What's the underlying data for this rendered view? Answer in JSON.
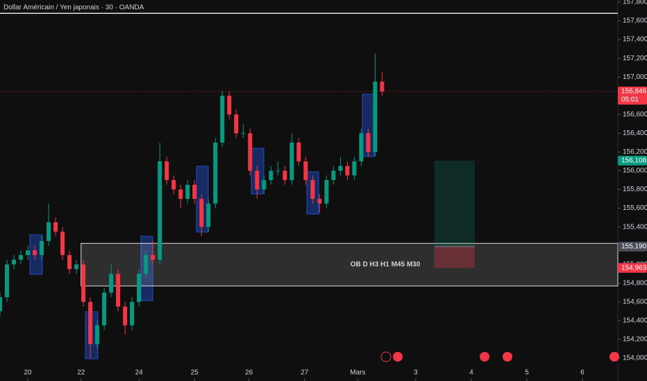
{
  "chart_data": {
    "type": "candlestick",
    "title": "Dollar Américain / Yen japonais · 30 · OANDA",
    "up_color": "#089981",
    "down_color": "#f23645",
    "x": [
      0,
      6,
      12,
      18,
      24,
      30,
      36,
      42,
      48,
      54,
      60,
      66,
      72,
      78,
      84,
      90,
      96,
      102,
      108,
      114,
      120,
      126,
      132,
      138,
      144,
      150,
      156,
      162,
      168,
      174,
      180,
      186,
      192,
      198,
      204,
      210,
      216,
      222,
      228,
      234,
      240,
      246,
      252,
      258,
      264,
      270,
      276,
      282,
      288,
      294,
      300,
      306,
      312,
      318,
      324,
      330
    ],
    "open": [
      154500,
      154650,
      155000,
      155050,
      155100,
      155150,
      155100,
      155250,
      155450,
      155350,
      155100,
      154950,
      155000,
      154600,
      154150,
      154350,
      154700,
      154900,
      154550,
      154350,
      154600,
      154900,
      155100,
      155050,
      156100,
      155900,
      155800,
      155700,
      155850,
      155700,
      155400,
      155650,
      156300,
      156800,
      156600,
      156400,
      156400,
      156000,
      155800,
      155900,
      156000,
      156000,
      155900,
      156300,
      156100,
      155900,
      155700,
      155650,
      155900,
      156000,
      156050,
      155950,
      156100,
      156400,
      156200,
      156950
    ],
    "high": [
      154700,
      155050,
      155100,
      155150,
      155200,
      155200,
      155300,
      155650,
      155500,
      155400,
      155150,
      155050,
      155050,
      154650,
      154400,
      154750,
      155000,
      154950,
      154600,
      154650,
      154950,
      155150,
      155250,
      156300,
      156150,
      155950,
      155850,
      155900,
      155900,
      155750,
      155700,
      156350,
      156850,
      156850,
      156650,
      156500,
      156450,
      156050,
      155950,
      156050,
      156100,
      156050,
      156400,
      156350,
      156150,
      155950,
      155750,
      155950,
      156050,
      156150,
      156100,
      156150,
      156450,
      156450,
      157250,
      157050
    ],
    "low": [
      154450,
      154600,
      154950,
      155000,
      155050,
      155050,
      155050,
      155200,
      155300,
      155050,
      154900,
      154900,
      154550,
      154000,
      154100,
      154300,
      154650,
      154500,
      154250,
      154300,
      154550,
      154850,
      155000,
      155000,
      155850,
      155750,
      155600,
      155650,
      155650,
      155300,
      155350,
      155600,
      156250,
      156550,
      156350,
      156350,
      155950,
      155700,
      155750,
      155850,
      155950,
      155850,
      155850,
      156050,
      155850,
      155650,
      155550,
      155600,
      155850,
      155950,
      155900,
      155900,
      156050,
      156150,
      156150,
      156800
    ],
    "close": [
      154650,
      155000,
      155050,
      155100,
      155150,
      155100,
      155250,
      155450,
      155350,
      155100,
      154950,
      155000,
      154600,
      154150,
      154350,
      154700,
      154900,
      154550,
      154350,
      154600,
      154900,
      155100,
      155050,
      156100,
      155900,
      155800,
      155700,
      155850,
      155700,
      155400,
      155650,
      156300,
      156800,
      156600,
      156400,
      156400,
      156000,
      155800,
      155900,
      156000,
      156000,
      155900,
      156300,
      156100,
      155900,
      155700,
      155650,
      155900,
      156000,
      156050,
      155950,
      156100,
      156400,
      156200,
      156950,
      156846
    ],
    "xlim": [
      0,
      530
    ],
    "xticks": [
      {
        "value": 24,
        "label": "20"
      },
      {
        "value": 70,
        "label": "22"
      },
      {
        "value": 120,
        "label": "24"
      },
      {
        "value": 168,
        "label": "25"
      },
      {
        "value": 215,
        "label": "26"
      },
      {
        "value": 263,
        "label": "27"
      },
      {
        "value": 309,
        "label": "Mars"
      },
      {
        "value": 359,
        "label": "3"
      },
      {
        "value": 407,
        "label": "4"
      },
      {
        "value": 455,
        "label": "5"
      },
      {
        "value": 503,
        "label": "6"
      }
    ],
    "ylim": [
      153756,
      157822
    ],
    "yticks": [
      {
        "value": 154000,
        "label": "154,000"
      },
      {
        "value": 154200,
        "label": "154,200"
      },
      {
        "value": 154400,
        "label": "154,400"
      },
      {
        "value": 154600,
        "label": "154,600"
      },
      {
        "value": 154800,
        "label": "154,800"
      },
      {
        "value": 155000,
        "label": "155,000"
      },
      {
        "value": 155200,
        "label": "155,200"
      },
      {
        "value": 155400,
        "label": "155,400"
      },
      {
        "value": 155600,
        "label": "155,600"
      },
      {
        "value": 155800,
        "label": "155,800"
      },
      {
        "value": 156000,
        "label": "156,000"
      },
      {
        "value": 156200,
        "label": "156,200"
      },
      {
        "value": 156400,
        "label": "156,400"
      },
      {
        "value": 156600,
        "label": "156,600"
      },
      {
        "value": 156800,
        "label": "156,800"
      },
      {
        "value": 157000,
        "label": "157,000"
      },
      {
        "value": 157200,
        "label": "157,200"
      },
      {
        "value": 157400,
        "label": "157,400"
      },
      {
        "value": 157600,
        "label": "157,600"
      },
      {
        "value": 157800,
        "label": "157,800"
      }
    ],
    "resistance_line": 157680,
    "last_price": {
      "value": 156846,
      "label": "156,846",
      "countdown": "05:01"
    },
    "zone": {
      "label": "OB D H3 H1 M45 M30",
      "low": 154770,
      "high": 155225,
      "x_start": 70
    },
    "position": {
      "x_start": 375,
      "x_end": 410,
      "target": {
        "value": 156108,
        "label": "156,108"
      },
      "entry": {
        "value": 155190,
        "label": "155,190"
      },
      "stop": {
        "value": 154963,
        "label": "154,963"
      }
    }
  }
}
